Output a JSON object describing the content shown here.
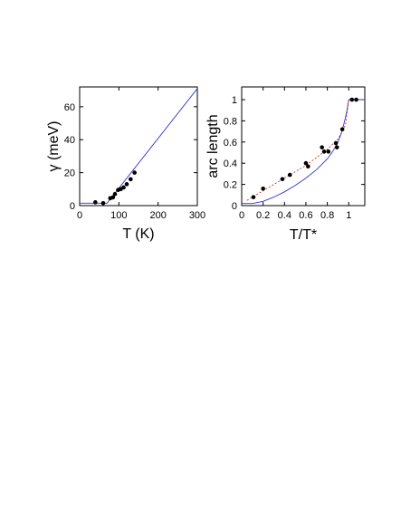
{
  "chart_data": [
    {
      "type": "scatter",
      "xlabel": "T (K)",
      "ylabel": "γ (meV)",
      "xlim": [
        0,
        300
      ],
      "ylim": [
        0,
        72
      ],
      "xticks": [
        0,
        100,
        200,
        300
      ],
      "xtick_labels": [
        "0",
        "100",
        "200",
        "300"
      ],
      "yticks": [
        0,
        20,
        40,
        60
      ],
      "ytick_labels": [
        "0",
        "20",
        "40",
        "60"
      ],
      "points": [
        {
          "x": 40,
          "y": 2
        },
        {
          "x": 60,
          "y": 1.5
        },
        {
          "x": 78,
          "y": 4.5
        },
        {
          "x": 85,
          "y": 5
        },
        {
          "x": 90,
          "y": 7
        },
        {
          "x": 98,
          "y": 9.5
        },
        {
          "x": 105,
          "y": 10
        },
        {
          "x": 112,
          "y": 11
        },
        {
          "x": 120,
          "y": 13
        },
        {
          "x": 130,
          "y": 16
        },
        {
          "x": 140,
          "y": 20
        }
      ],
      "lines": [
        {
          "style": "solid",
          "color": "#3333cc",
          "x": [
            0,
            70,
            300
          ],
          "y": [
            1.5,
            1.5,
            71
          ]
        }
      ]
    },
    {
      "type": "scatter",
      "xlabel": "T/T*",
      "ylabel": "arc length",
      "xlim": [
        0,
        1.15
      ],
      "ylim": [
        0,
        1.12
      ],
      "xticks": [
        0,
        0.2,
        0.4,
        0.6,
        0.8,
        1
      ],
      "xtick_labels": [
        "0",
        "0.2",
        "0.4",
        "0.6",
        "0.8",
        "1"
      ],
      "yticks": [
        0,
        0.2,
        0.4,
        0.6,
        0.8,
        1
      ],
      "ytick_labels": [
        "0",
        "0.2",
        "0.4",
        "0.6",
        "0.8",
        "1"
      ],
      "points": [
        {
          "x": 0.11,
          "y": 0.08
        },
        {
          "x": 0.2,
          "y": 0.16
        },
        {
          "x": 0.38,
          "y": 0.25
        },
        {
          "x": 0.45,
          "y": 0.29
        },
        {
          "x": 0.6,
          "y": 0.4
        },
        {
          "x": 0.62,
          "y": 0.37
        },
        {
          "x": 0.75,
          "y": 0.55
        },
        {
          "x": 0.77,
          "y": 0.51
        },
        {
          "x": 0.81,
          "y": 0.51
        },
        {
          "x": 0.88,
          "y": 0.59
        },
        {
          "x": 0.89,
          "y": 0.55
        },
        {
          "x": 0.94,
          "y": 0.72
        },
        {
          "x": 1.03,
          "y": 1
        },
        {
          "x": 1.07,
          "y": 1
        }
      ],
      "lines": [
        {
          "style": "solid",
          "color": "#3333cc",
          "x": [
            0,
            0.1,
            0.2,
            0.3,
            0.4,
            0.5,
            0.6,
            0.7,
            0.8,
            0.85,
            0.9,
            0.93,
            0.96,
            0.98,
            1.0,
            1.15
          ],
          "y": [
            0.02,
            0.02,
            0.04,
            0.08,
            0.13,
            0.19,
            0.26,
            0.34,
            0.44,
            0.51,
            0.6,
            0.68,
            0.79,
            0.88,
            1.0,
            1.0
          ]
        },
        {
          "style": "dashed",
          "color": "#cc3333",
          "x": [
            0.05,
            0.2,
            0.4,
            0.6,
            0.8,
            0.9,
            0.97,
            1.0
          ],
          "y": [
            0.05,
            0.14,
            0.26,
            0.38,
            0.53,
            0.63,
            0.76,
            1.0
          ]
        }
      ]
    }
  ]
}
